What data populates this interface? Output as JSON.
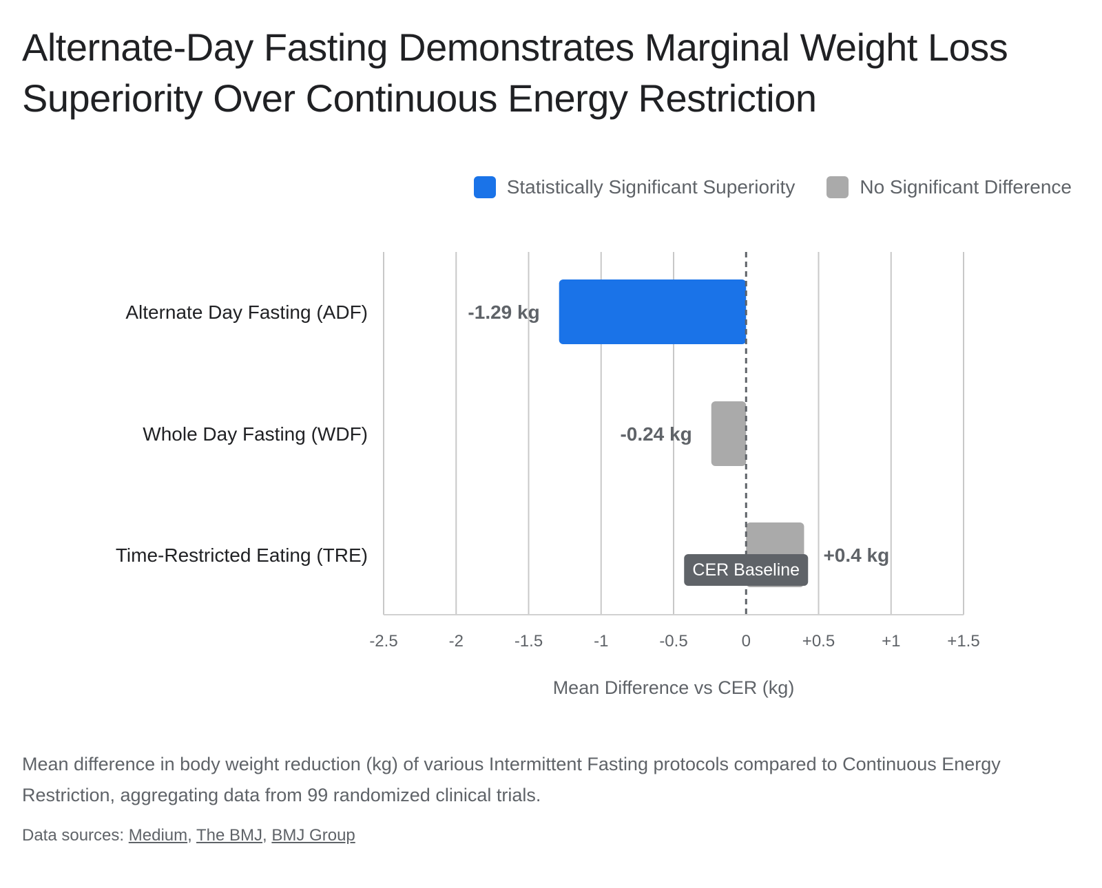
{
  "title": "Alternate-Day Fasting Demonstrates Marginal Weight Loss Superiority Over Continuous Energy Restriction",
  "legend": [
    {
      "label": "Statistically Significant Superiority",
      "color": "#1a73e8"
    },
    {
      "label": "No Significant Difference",
      "color": "#aaaaaa"
    }
  ],
  "chart_data": {
    "type": "bar",
    "orientation": "horizontal",
    "categories": [
      "Alternate Day Fasting (ADF)",
      "Whole Day Fasting (WDF)",
      "Time-Restricted Eating (TRE)"
    ],
    "values": [
      -1.29,
      -0.24,
      0.4
    ],
    "value_labels": [
      "-1.29 kg",
      "-0.24 kg",
      "+0.4 kg"
    ],
    "significance": [
      "Statistically Significant Superiority",
      "No Significant Difference",
      "No Significant Difference"
    ],
    "colors": [
      "#1a73e8",
      "#aaaaaa",
      "#aaaaaa"
    ],
    "xlabel": "Mean Difference vs CER (kg)",
    "xlim": [
      -2.5,
      1.5
    ],
    "ticks": [
      -2.5,
      -2,
      -1.5,
      -1,
      -0.5,
      0,
      0.5,
      1,
      1.5
    ],
    "tick_labels": [
      "-2.5",
      "-2",
      "-1.5",
      "-1",
      "-0.5",
      "0",
      "+0.5",
      "+1",
      "+1.5"
    ],
    "grid": true,
    "legend_position": "top-right",
    "reference_line": {
      "value": 0,
      "style": "dashed",
      "label": "CER Baseline"
    }
  },
  "caption": "Mean difference in body weight reduction (kg) of various Intermittent Fasting protocols compared to Continuous Energy Restriction, aggregating data from 99 randomized clinical trials.",
  "sources": {
    "prefix": "Data sources:",
    "links": [
      "Medium",
      "The BMJ",
      "BMJ Group"
    ]
  }
}
